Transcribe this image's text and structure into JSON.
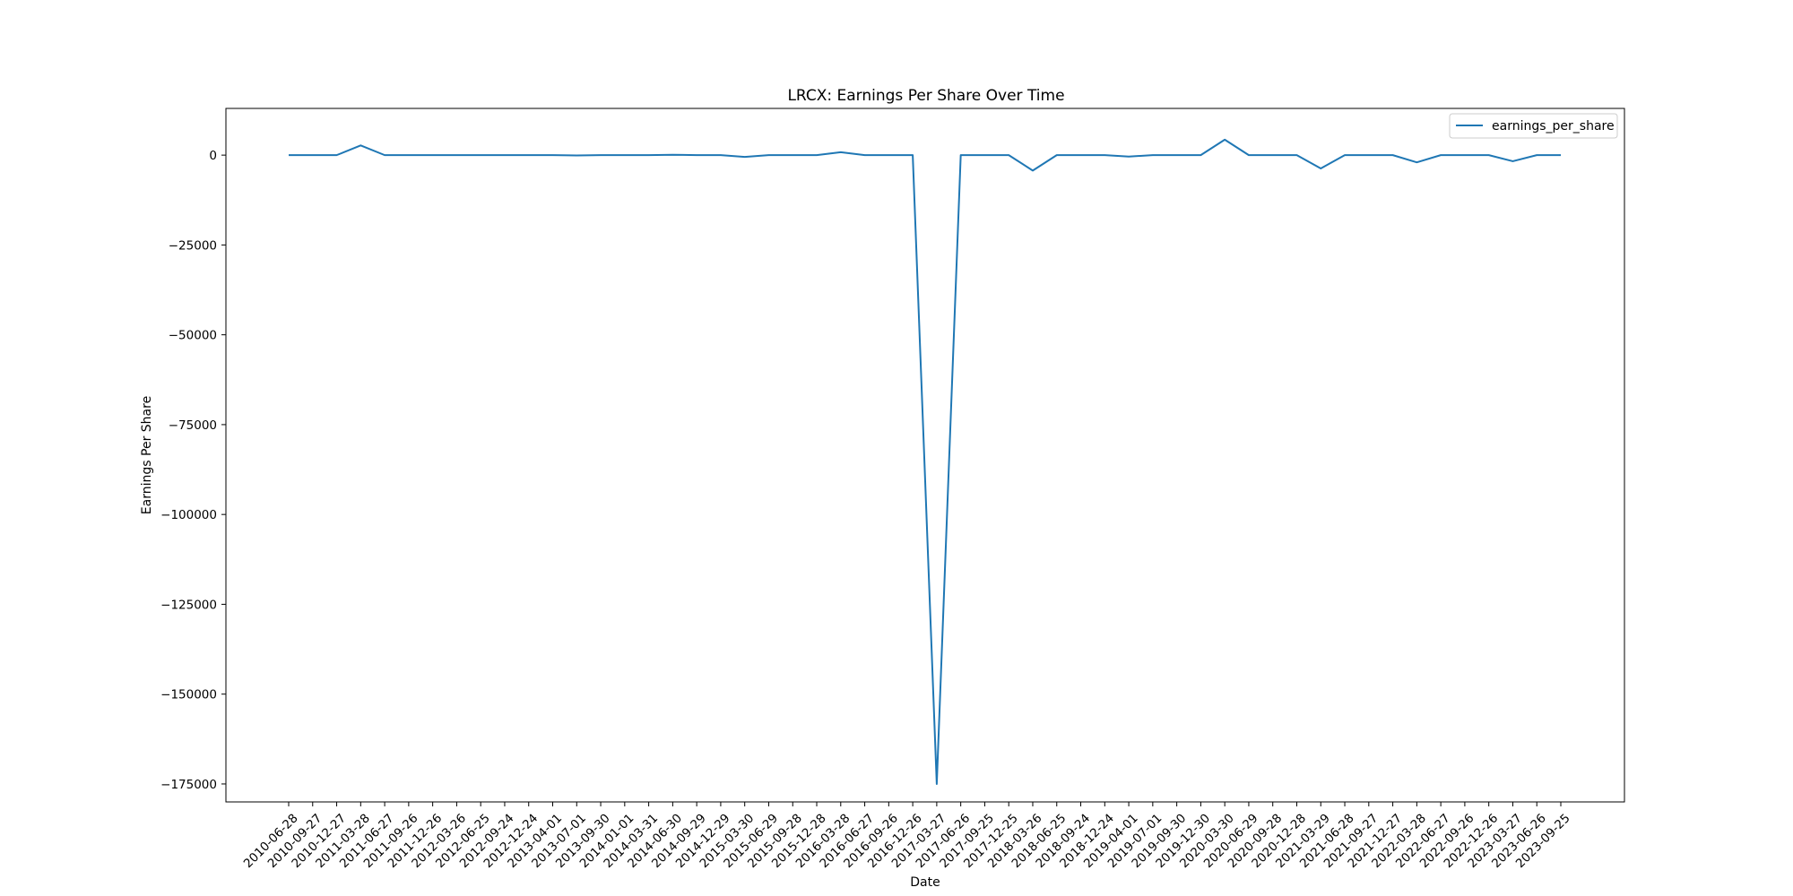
{
  "chart_data": {
    "type": "line",
    "title": "LRCX: Earnings Per Share Over Time",
    "xlabel": "Date",
    "ylabel": "Earnings Per Share",
    "ylim": [
      -180000,
      13000
    ],
    "yticks": [
      0,
      -25000,
      -50000,
      -75000,
      -100000,
      -125000,
      -150000,
      -175000
    ],
    "ytick_labels": [
      "0",
      "−25000",
      "−50000",
      "−75000",
      "−100000",
      "−125000",
      "−150000",
      "−175000"
    ],
    "grid": false,
    "legend_position": "top-right",
    "line_color": "#1f77b4",
    "tick_labels_visible": [
      "2010-06-28",
      "2010-09-27",
      "2010-12-27",
      "2011-03-28",
      "2011-06-27",
      "2011-09-26",
      "2011-12-26",
      "2012-03-26",
      "2012-06-25",
      "2012-09-24",
      "2012-12-24",
      "2013-04-01",
      "2013-07-01",
      "2013-09-30",
      "2014-01-01",
      "2014-03-31",
      "2014-06-30",
      "2014-09-29",
      "2014-12-29",
      "2015-03-30",
      "2015-06-29",
      "2015-09-28",
      "2015-12-28",
      "2016-03-28",
      "2016-06-27",
      "2016-09-26",
      "2016-12-26",
      "2017-03-27",
      "2017-06-26",
      "2017-09-25",
      "2017-12-25",
      "2018-03-26",
      "2018-06-25",
      "2018-09-24",
      "2018-12-24",
      "2019-04-01",
      "2019-07-01",
      "2019-09-30",
      "2019-12-30",
      "2020-03-30",
      "2020-06-29",
      "2020-09-28",
      "2020-12-28",
      "2021-03-29",
      "2021-06-28",
      "2021-09-27",
      "2021-12-27",
      "2022-03-28",
      "2022-06-27",
      "2022-09-26",
      "2022-12-26",
      "2023-03-27",
      "2023-06-26",
      "2023-09-25"
    ],
    "x": [
      "2010-06-28",
      "2010-09-27",
      "2010-12-27",
      "2011-03-28",
      "2011-06-27",
      "2011-09-26",
      "2011-12-26",
      "2012-03-26",
      "2012-06-25",
      "2012-09-24",
      "2012-12-24",
      "2013-04-01",
      "2013-07-01",
      "2013-09-30",
      "2014-01-01",
      "2014-03-31",
      "2014-06-30",
      "2014-09-29",
      "2014-12-29",
      "2015-03-30",
      "2015-06-29",
      "2015-09-28",
      "2015-12-28",
      "2016-03-28",
      "2016-06-27",
      "2016-09-26",
      "2016-12-26",
      "2017-03-27",
      "2017-06-26",
      "2017-09-25",
      "2017-12-25",
      "2018-03-26",
      "2018-06-25",
      "2018-09-24",
      "2018-12-24",
      "2019-04-01",
      "2019-07-01",
      "2019-09-30",
      "2019-12-30",
      "2020-03-30",
      "2020-06-29",
      "2020-09-28",
      "2020-12-28",
      "2021-03-29",
      "2021-06-28",
      "2021-09-27",
      "2021-12-27",
      "2022-03-28",
      "2022-06-27",
      "2022-09-26",
      "2022-12-26",
      "2023-03-27",
      "2023-06-26",
      "2023-09-25"
    ],
    "series": [
      {
        "name": "earnings_per_share",
        "values": [
          0,
          0,
          0,
          2700,
          0,
          0,
          0,
          0,
          0,
          0,
          0,
          0,
          -100,
          0,
          0,
          0,
          100,
          0,
          0,
          -500,
          0,
          0,
          0,
          800,
          0,
          0,
          0,
          -175000,
          0,
          0,
          0,
          -4300,
          0,
          0,
          0,
          -400,
          0,
          0,
          0,
          4300,
          0,
          0,
          0,
          -3700,
          0,
          0,
          0,
          -2000,
          0,
          0,
          0,
          -1700,
          0,
          0
        ]
      }
    ]
  }
}
